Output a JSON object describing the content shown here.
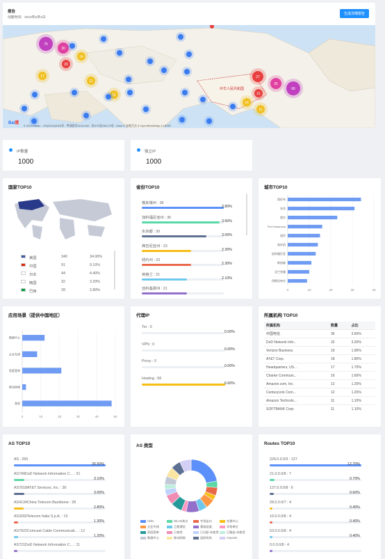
{
  "header": {
    "title": "报告",
    "created": "创建时间：2023年5月4日",
    "button": "生成详细报告"
  },
  "map": {
    "attribution": "© 2023 Baidu - GS(2021)6026号 - 甲测资字11111342 - 京ICP证030173号 - Data © 长地万方 & OpenStreetMap & HERE",
    "labels": [
      {
        "t": "中华人民共和国",
        "c": "#cc3333"
      }
    ],
    "clusters": [
      {
        "n": "75",
        "c": "#c040c0"
      },
      {
        "n": "30",
        "c": "#e040a0"
      },
      {
        "n": "14",
        "c": "#f0c020"
      },
      {
        "n": "20",
        "c": "#e84040"
      },
      {
        "n": "17",
        "c": "#f0c020"
      },
      {
        "n": "11",
        "c": "#f0c020"
      },
      {
        "n": "11",
        "c": "#f0c020"
      },
      {
        "n": "27",
        "c": "#e84040"
      },
      {
        "n": "35",
        "c": "#e040a0"
      },
      {
        "n": "66",
        "c": "#c040c0"
      },
      {
        "n": "14",
        "c": "#f0c020"
      },
      {
        "n": "11",
        "c": "#f0c020"
      },
      {
        "n": "21",
        "c": "#e84040"
      }
    ]
  },
  "stats": [
    {
      "label": "IP数量",
      "value": "1000"
    },
    {
      "label": "独立IP",
      "value": "1000"
    }
  ],
  "country": {
    "title": "国家TOP10",
    "rows": [
      {
        "flag": "us",
        "name": "美国",
        "count": "340",
        "pct": "34.00%"
      },
      {
        "flag": "cn",
        "name": "中国",
        "count": "91",
        "pct": "9.10%"
      },
      {
        "flag": "jp",
        "name": "日本",
        "count": "44",
        "pct": "4.40%"
      },
      {
        "flag": "kr",
        "name": "韩国",
        "count": "32",
        "pct": "3.20%"
      },
      {
        "flag": "br",
        "name": "巴西",
        "count": "28",
        "pct": "2.80%"
      }
    ]
  },
  "province": {
    "title": "省份TOP10",
    "rows": [
      {
        "name": "俄亥俄州 : 38",
        "pct": "3.80%",
        "v": 3.8,
        "c": "#5b8ff9"
      },
      {
        "name": "加利福尼亚州 : 36",
        "pct": "3.60%",
        "v": 3.6,
        "c": "#5ad8a6"
      },
      {
        "name": "东京都 : 30",
        "pct": "3.00%",
        "v": 3.0,
        "c": "#5d7092"
      },
      {
        "name": "弗吉尼亚州 : 23",
        "pct": "2.30%",
        "v": 2.3,
        "c": "#f6bd16"
      },
      {
        "name": "纽约州 : 23",
        "pct": "2.30%",
        "v": 2.3,
        "c": "#e8684a"
      },
      {
        "name": "英格兰 : 21",
        "pct": "2.10%",
        "v": 2.1,
        "c": "#6dc8ec"
      },
      {
        "name": "亚利桑那州 : 21",
        "pct": "",
        "v": 2.1,
        "c": "#9270ca"
      }
    ]
  },
  "city": {
    "title": "城市TOP10",
    "chart_data": {
      "type": "bar",
      "orientation": "horizontal",
      "categories": [
        "哥伦布",
        "东京",
        "首尔",
        "Fort Huachuca",
        "纽约",
        "洛杉矶",
        "加利福尼亚",
        "新加坡",
        "法兰克福",
        "伊斯坦布尔"
      ],
      "values": [
        34,
        31,
        23,
        16,
        15,
        14,
        13,
        11,
        10,
        9
      ],
      "xlim": [
        0,
        40
      ],
      "xticks": [
        0,
        10,
        20,
        30,
        40
      ]
    }
  },
  "scene": {
    "title": "应用场景（提供中国地区）",
    "chart_data": {
      "type": "bar",
      "orientation": "horizontal",
      "categories": [
        "数据中心",
        "企业专线",
        "家庭宽带",
        "移动网络",
        "其他"
      ],
      "values": [
        12,
        8,
        21,
        2,
        48
      ],
      "xlim": [
        0,
        50
      ],
      "xticks": [
        0,
        10,
        20,
        30,
        40,
        50
      ]
    }
  },
  "proxy": {
    "title": "代理IP",
    "rows": [
      {
        "name": "Tor : 0",
        "pct": "0.00%",
        "v": 0
      },
      {
        "name": "VPN : 0",
        "pct": "0.00%",
        "v": 0
      },
      {
        "name": "Proxy : 0",
        "pct": "0.00%",
        "v": 0
      },
      {
        "name": "Hosting : 66",
        "pct": "6.60%",
        "v": 6.6
      }
    ]
  },
  "org": {
    "title": "所属机构 TOP10",
    "headers": [
      "所属机构",
      "数量",
      "占比"
    ],
    "rows": [
      [
        "中国电信",
        "36",
        "3.60%"
      ],
      [
        "DoD Network Info...",
        "32",
        "3.20%"
      ],
      [
        "Verizon Business",
        "19",
        "1.90%"
      ],
      [
        "AT&T Corp.",
        "18",
        "1.80%"
      ],
      [
        "Headquarters, US...",
        "17",
        "1.70%"
      ],
      [
        "Charter Communi...",
        "16",
        "1.60%"
      ],
      [
        "Amazon.com, Inc.",
        "12",
        "1.20%"
      ],
      [
        "CenturyLink Com...",
        "12",
        "1.20%"
      ],
      [
        "Amazon Technolo...",
        "11",
        "1.10%"
      ],
      [
        "SOFTBANK Corp.",
        "11",
        "1.10%"
      ]
    ]
  },
  "as": {
    "title": "AS TOP10",
    "rows": [
      {
        "name": "AS : 265",
        "pct": "26.50%",
        "v": 26.5,
        "c": "#5b8ff9"
      },
      {
        "name": "AS749DoD Network Information C... : 31",
        "pct": "3.10%",
        "v": 3.1,
        "c": "#5ad8a6"
      },
      {
        "name": "AS7018AT&T Services, Inc. : 30",
        "pct": "3.00%",
        "v": 3.0,
        "c": "#5d7092"
      },
      {
        "name": "AS4134China Telecom Backbone : 28",
        "pct": "2.80%",
        "v": 2.8,
        "c": "#f6bd16"
      },
      {
        "name": "AS3269Telecom Italia S.p.A. : 13",
        "pct": "1.30%",
        "v": 1.3,
        "c": "#e8684a"
      },
      {
        "name": "AS7922Comcast Cable Communicati... : 12",
        "pct": "1.20%",
        "v": 1.2,
        "c": "#6dc8ec"
      },
      {
        "name": "AS721DoD Network Information C... : 11",
        "pct": "",
        "v": 1.1,
        "c": "#9270ca"
      }
    ]
  },
  "astype": {
    "title": "AS 类型",
    "chart_data": {
      "type": "pie",
      "labels": [
        "CDN",
        "WLAN热点",
        "专用出口",
        "交换中心",
        "企业专线",
        "卫星通信",
        "基础设施",
        "学校单位",
        "家庭宽带",
        "已使用",
        "已分配-未使用",
        "已路由-未使用",
        "数据中心",
        "移动网络",
        "组织机构",
        "Anycast"
      ],
      "values": [
        22,
        4,
        5,
        3,
        6,
        5,
        8,
        3,
        7,
        6,
        4,
        3,
        5,
        6,
        6,
        7
      ],
      "colors": [
        "#5b8ff9",
        "#5ad8a6",
        "#e8684a",
        "#f6bd16",
        "#ff9845",
        "#6dc8ec",
        "#9270ca",
        "#ff99c3",
        "#269a99",
        "#f08bb4",
        "#bdd2fd",
        "#bdefdb",
        "#c2c8d5",
        "#fbe5a2",
        "#5d7092",
        "#d3cef3"
      ]
    }
  },
  "routes": {
    "title": "Routes TOP10",
    "rows": [
      {
        "name": "224.0.0.0/3 : 127",
        "pct": "12.70%",
        "v": 12.7,
        "c": "#5b8ff9"
      },
      {
        "name": "21.0.0.0/8 : 7",
        "pct": "0.70%",
        "v": 0.7,
        "c": "#5ad8a6"
      },
      {
        "name": "127.0.0.0/8 : 6",
        "pct": "0.60%",
        "v": 0.6,
        "c": "#5d7092"
      },
      {
        "name": "28.0.0.0/7 : 4",
        "pct": "0.40%",
        "v": 0.4,
        "c": "#f6bd16"
      },
      {
        "name": "10.0.0.0/8 : 4",
        "pct": "0.40%",
        "v": 0.4,
        "c": "#e8684a"
      },
      {
        "name": "53.0.0.0/8 : 4",
        "pct": "0.40%",
        "v": 0.4,
        "c": "#6dc8ec"
      },
      {
        "name": "0.0.0.0/8 : 4",
        "pct": "",
        "v": 0.4,
        "c": "#9270ca"
      }
    ]
  }
}
